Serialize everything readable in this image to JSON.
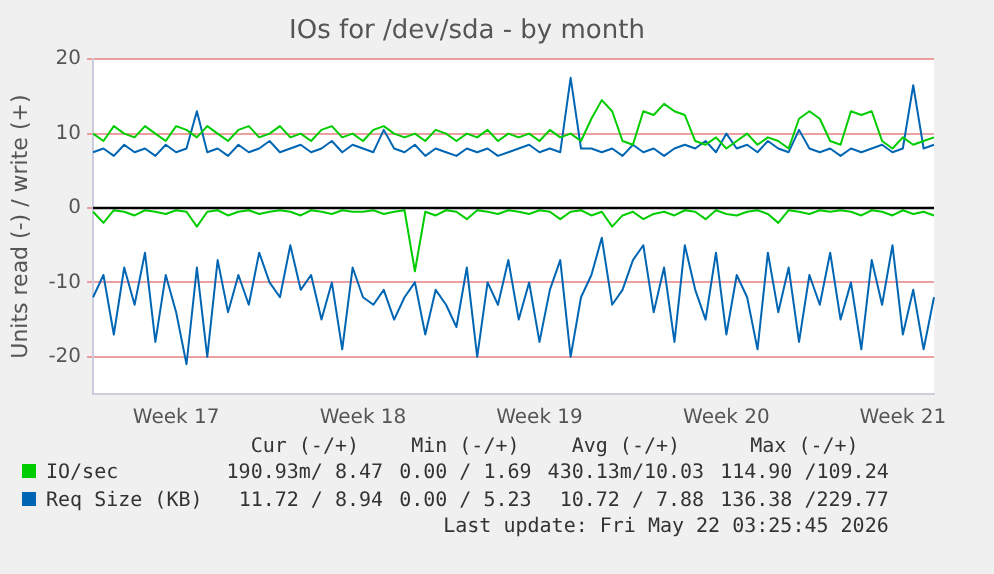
{
  "chart_data": {
    "type": "line",
    "title": "IOs for /dev/sda - by month",
    "ylabel": "Units read (-) / write (+)",
    "categories": [
      null,
      null,
      null,
      null,
      null,
      null,
      null,
      null,
      "Week 17",
      null,
      null,
      null,
      null,
      null,
      null,
      null,
      null,
      null,
      null,
      null,
      null,
      null,
      null,
      null,
      null,
      null,
      "Week 18",
      null,
      null,
      null,
      null,
      null,
      null,
      null,
      null,
      null,
      null,
      null,
      null,
      null,
      null,
      null,
      null,
      "Week 19",
      null,
      null,
      null,
      null,
      null,
      null,
      null,
      null,
      null,
      null,
      null,
      null,
      null,
      null,
      null,
      null,
      null,
      "Week 20",
      null,
      null,
      null,
      null,
      null,
      null,
      null,
      null,
      null,
      null,
      null,
      null,
      null,
      null,
      null,
      null,
      "Week 21",
      null,
      null,
      null
    ],
    "series": [
      {
        "name": "IO/sec",
        "color": "#00cc00",
        "values": [
          10,
          9,
          11,
          10,
          9.5,
          11,
          10,
          9,
          11,
          10.5,
          9.5,
          11,
          10,
          9,
          10.5,
          11,
          9.5,
          10,
          11,
          9.5,
          10,
          9,
          10.5,
          11,
          9.5,
          10,
          9,
          10.5,
          11,
          10,
          9.5,
          10,
          9,
          10.5,
          10,
          9,
          10,
          9.5,
          10.5,
          9,
          10,
          9.5,
          10,
          9,
          10.5,
          9.5,
          10,
          9,
          12,
          14.5,
          13,
          9,
          8.5,
          13,
          12.5,
          14,
          13,
          12.5,
          9,
          8.5,
          9.5,
          8,
          9,
          10,
          8.5,
          9.5,
          9,
          8,
          12,
          13,
          12,
          9,
          8.5,
          13,
          12.5,
          13,
          9,
          8,
          9.5,
          8.5,
          9,
          9.5
        ]
      },
      {
        "color": "#00cc00",
        "values": [
          -0.5,
          -2,
          -0.3,
          -0.5,
          -1,
          -0.3,
          -0.5,
          -0.8,
          -0.3,
          -0.5,
          -2.5,
          -0.5,
          -0.3,
          -1,
          -0.5,
          -0.3,
          -0.8,
          -0.5,
          -0.3,
          -0.5,
          -1,
          -0.3,
          -0.5,
          -0.8,
          -0.3,
          -0.5,
          -0.5,
          -0.3,
          -0.8,
          -0.5,
          -0.3,
          -8.5,
          -0.5,
          -1,
          -0.3,
          -0.5,
          -1.5,
          -0.3,
          -0.5,
          -0.8,
          -0.3,
          -0.5,
          -0.8,
          -0.3,
          -0.5,
          -1.5,
          -0.5,
          -0.3,
          -1,
          -0.5,
          -2.5,
          -1,
          -0.5,
          -1.5,
          -0.8,
          -0.5,
          -1,
          -0.3,
          -0.5,
          -1.5,
          -0.3,
          -0.8,
          -1,
          -0.5,
          -0.3,
          -0.8,
          -2,
          -0.3,
          -0.5,
          -0.8,
          -0.3,
          -0.5,
          -0.3,
          -0.5,
          -1,
          -0.3,
          -0.5,
          -1,
          -0.3,
          -0.8,
          -0.5,
          -1
        ]
      },
      {
        "name": "Req Size (KB)",
        "color": "#0066b3",
        "values": [
          7.5,
          8,
          7,
          8.5,
          7.5,
          8,
          7,
          8.5,
          7.5,
          8,
          13,
          7.5,
          8,
          7,
          8.5,
          7.5,
          8,
          9,
          7.5,
          8,
          8.5,
          7.5,
          8,
          9,
          7.5,
          8.5,
          8,
          7.5,
          10.5,
          8,
          7.5,
          8.5,
          7,
          8,
          7.5,
          7,
          8,
          7.5,
          8,
          7,
          7.5,
          8,
          8.5,
          7.5,
          8,
          7.5,
          17.5,
          8,
          8,
          7.5,
          8,
          7,
          8.5,
          7.5,
          8,
          7,
          8,
          8.5,
          8,
          9,
          7.5,
          10,
          8,
          8.5,
          7.5,
          9,
          8,
          7.5,
          10.5,
          8,
          7.5,
          8,
          7,
          8,
          7.5,
          8,
          8.5,
          7.5,
          8,
          16.5,
          8,
          8.5
        ]
      },
      {
        "color": "#0066b3",
        "values": [
          -12,
          -9,
          -17,
          -8,
          -13,
          -6,
          -18,
          -9,
          -14,
          -21,
          -8,
          -20,
          -7,
          -14,
          -9,
          -13,
          -6,
          -10,
          -12,
          -5,
          -11,
          -9,
          -15,
          -10,
          -19,
          -8,
          -12,
          -13,
          -11,
          -15,
          -12,
          -10,
          -17,
          -11,
          -13,
          -16,
          -8,
          -20,
          -10,
          -13,
          -7,
          -15,
          -10,
          -18,
          -11,
          -7,
          -20,
          -12,
          -9,
          -4,
          -13,
          -11,
          -7,
          -5,
          -14,
          -8,
          -18,
          -5,
          -11,
          -15,
          -6,
          -17,
          -9,
          -12,
          -19,
          -6,
          -14,
          -8,
          -18,
          -9,
          -13,
          -6,
          -15,
          -10,
          -19,
          -7,
          -13,
          -5,
          -17,
          -11,
          -19,
          -12
        ]
      }
    ],
    "ylim": [
      -25,
      20
    ],
    "yticks": [
      -20,
      -10,
      0,
      10,
      20
    ],
    "ref_lines": [
      {
        "axis": "y",
        "value": 0,
        "color": "#000000"
      }
    ],
    "grid": "y",
    "legend": "bottom",
    "marker": "none",
    "line_style": "solid",
    "annotations": [
      "Cur (-/+)",
      "Min (-/+)",
      "Avg (-/+)",
      "Max (-/+)",
      "190.93m/ 8.47",
      "0.00 / 1.69",
      "430.13m/10.03",
      "114.90 /109.24",
      "11.72 / 8.94",
      "0.00 / 5.23",
      "10.72 / 7.88",
      "136.38 /229.77",
      "Last update: Fri May 22 03:25:45 2026"
    ]
  }
}
